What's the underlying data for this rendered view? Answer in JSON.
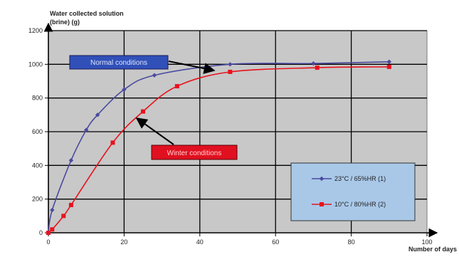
{
  "chart_data": {
    "type": "line",
    "ylabel_line1": "Water collected solution",
    "ylabel_line2": "(brine) (g)",
    "xlabel": "Number of days",
    "xlim": [
      0,
      100
    ],
    "ylim": [
      0,
      1200
    ],
    "grid": true,
    "x_ticks": [
      "0",
      "20",
      "40",
      "60",
      "80",
      "100"
    ],
    "y_ticks": [
      "0",
      "200",
      "400",
      "600",
      "800",
      "1000",
      "1200"
    ],
    "legend_position": "bottom-right",
    "series": [
      {
        "name": "23°C / 65%HR (1)",
        "color": "#4a4aa0",
        "marker": "diamond",
        "points": [
          [
            0,
            0
          ],
          [
            1,
            135
          ],
          [
            6,
            430
          ],
          [
            10,
            610
          ],
          [
            13,
            700
          ],
          [
            20,
            850
          ],
          [
            28,
            935
          ],
          [
            48,
            1000
          ],
          [
            70,
            1005
          ],
          [
            90,
            1015
          ]
        ]
      },
      {
        "name": "10°C / 80%HR (2)",
        "color": "#e8121d",
        "marker": "square",
        "points": [
          [
            0,
            0
          ],
          [
            1,
            20
          ],
          [
            4,
            100
          ],
          [
            6,
            165
          ],
          [
            17,
            535
          ],
          [
            25,
            720
          ],
          [
            34,
            870
          ],
          [
            48,
            955
          ],
          [
            71,
            980
          ],
          [
            90,
            985
          ]
        ]
      }
    ],
    "annotations": [
      {
        "text": "Normal conditions",
        "bg": "#3050b8"
      },
      {
        "text": "Winter conditions",
        "bg": "#e01020"
      }
    ]
  }
}
